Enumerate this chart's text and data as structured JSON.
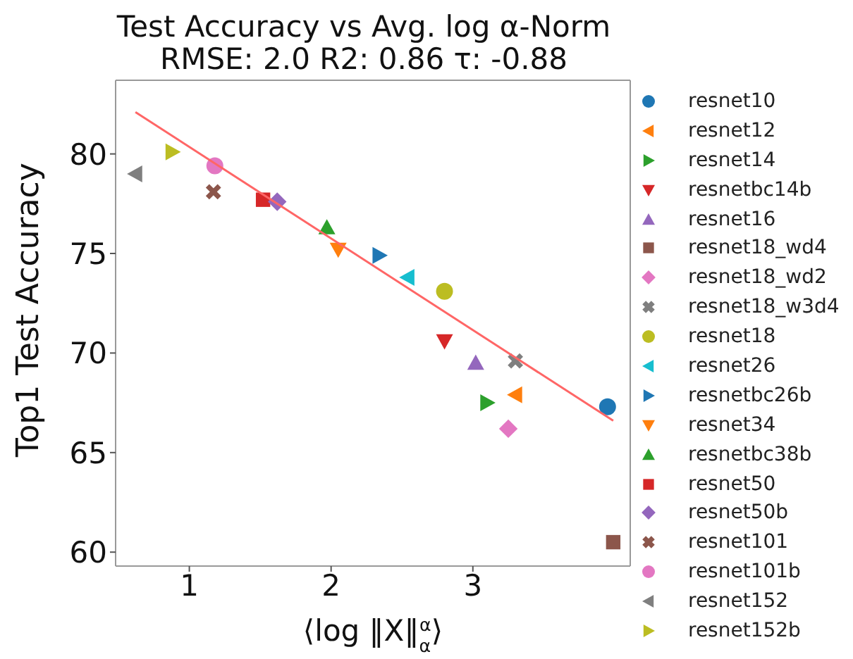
{
  "chart_data": {
    "type": "scatter",
    "title": "Test Accuracy vs Avg. log α-Norm",
    "subtitle": "RMSE: 2.0 R2: 0.86 τ: -0.88",
    "xlabel": "⟨log ‖X‖$_{α}$$^{α}$⟩",
    "ylabel": "Top1 Test Accuracy",
    "xlim": [
      0.48,
      4.11
    ],
    "ylim": [
      59.3,
      83.7
    ],
    "xticks": [
      1,
      2,
      3
    ],
    "yticks": [
      60,
      65,
      70,
      75,
      80
    ],
    "legend": "right",
    "series": [
      {
        "name": "resnet10",
        "color": "#1f77b4",
        "marker": "circle",
        "x": [
          3.95
        ],
        "values": [
          67.3
        ]
      },
      {
        "name": "resnet12",
        "color": "#ff7f0e",
        "marker": "triangle-left",
        "x": [
          3.3
        ],
        "values": [
          67.9
        ]
      },
      {
        "name": "resnet14",
        "color": "#2ca02c",
        "marker": "triangle-right",
        "x": [
          3.1
        ],
        "values": [
          67.5
        ]
      },
      {
        "name": "resnetbc14b",
        "color": "#d62728",
        "marker": "triangle-down",
        "x": [
          2.8
        ],
        "values": [
          70.6
        ]
      },
      {
        "name": "resnet16",
        "color": "#9467bd",
        "marker": "triangle",
        "x": [
          3.02
        ],
        "values": [
          69.5
        ]
      },
      {
        "name": "resnet18_wd4",
        "color": "#8c564b",
        "marker": "square",
        "x": [
          3.99
        ],
        "values": [
          60.5
        ]
      },
      {
        "name": "resnet18_wd2",
        "color": "#e377c2",
        "marker": "diamond",
        "x": [
          3.25
        ],
        "values": [
          66.2
        ]
      },
      {
        "name": "resnet18_w3d4",
        "color": "#7f7f7f",
        "marker": "cross",
        "x": [
          3.3
        ],
        "values": [
          69.6
        ]
      },
      {
        "name": "resnet18",
        "color": "#bcbd22",
        "marker": "circle",
        "x": [
          2.8
        ],
        "values": [
          73.1
        ]
      },
      {
        "name": "resnet26",
        "color": "#17becf",
        "marker": "triangle-left",
        "x": [
          2.54
        ],
        "values": [
          73.8
        ]
      },
      {
        "name": "resnetbc26b",
        "color": "#1f77b4",
        "marker": "triangle-right",
        "x": [
          2.34
        ],
        "values": [
          74.9
        ]
      },
      {
        "name": "resnet34",
        "color": "#ff7f0e",
        "marker": "triangle-down",
        "x": [
          2.05
        ],
        "values": [
          75.2
        ]
      },
      {
        "name": "resnetbc38b",
        "color": "#2ca02c",
        "marker": "triangle",
        "x": [
          1.97
        ],
        "values": [
          76.3
        ]
      },
      {
        "name": "resnet50",
        "color": "#d62728",
        "marker": "square",
        "x": [
          1.52
        ],
        "values": [
          77.7
        ]
      },
      {
        "name": "resnet50b",
        "color": "#9467bd",
        "marker": "diamond",
        "x": [
          1.62
        ],
        "values": [
          77.6
        ]
      },
      {
        "name": "resnet101",
        "color": "#8c564b",
        "marker": "cross",
        "x": [
          1.17
        ],
        "values": [
          78.1
        ]
      },
      {
        "name": "resnet101b",
        "color": "#e377c2",
        "marker": "circle",
        "x": [
          1.18
        ],
        "values": [
          79.4
        ]
      },
      {
        "name": "resnet152",
        "color": "#7f7f7f",
        "marker": "triangle-left",
        "x": [
          0.62
        ],
        "values": [
          79.0
        ]
      },
      {
        "name": "resnet152b",
        "color": "#bcbd22",
        "marker": "triangle-right",
        "x": [
          0.88
        ],
        "values": [
          80.1
        ]
      },
      {
        "type": "line",
        "color": "#ff6666",
        "x": [
          0.62,
          3.99
        ],
        "values": [
          82.1,
          66.6
        ]
      }
    ]
  }
}
